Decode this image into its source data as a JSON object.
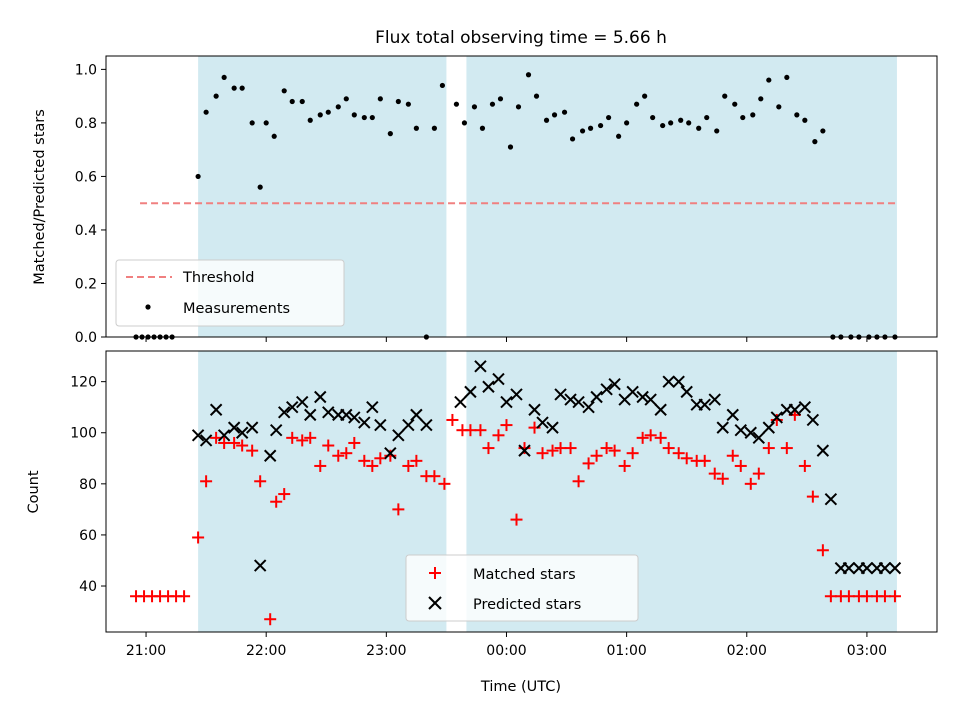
{
  "figure": {
    "title": "Flux total observing time = 5.66 h"
  },
  "chart_data": [
    {
      "type": "scatter",
      "ylabel": "Matched/Predicted stars",
      "xlabel": "",
      "xlim": [
        "20:40",
        "03:35"
      ],
      "ylim": [
        0,
        1.05
      ],
      "x_ticks": [
        "21:00",
        "22:00",
        "23:00",
        "00:00",
        "01:00",
        "02:00",
        "03:00"
      ],
      "y_ticks": [
        "0.0",
        "0.2",
        "0.4",
        "0.6",
        "0.8",
        "1.0"
      ],
      "shaded_intervals": [
        [
          "21:26",
          "23:30"
        ],
        [
          "23:40",
          "03:15"
        ]
      ],
      "shade_color": "#add8e6",
      "threshold": {
        "name": "Threshold",
        "value": 0.5,
        "x_start": "20:57",
        "x_end": "03:15",
        "color": "#f08080"
      },
      "legend": {
        "position": "lower-left",
        "entries": [
          "Threshold",
          "Measurements"
        ]
      },
      "series": [
        {
          "name": "Measurements",
          "color": "#000000",
          "x": [
            "20:55",
            "20:58",
            "21:01",
            "21:04",
            "21:07",
            "21:10",
            "21:13",
            "21:26",
            "21:30",
            "21:35",
            "21:39",
            "21:44",
            "21:48",
            "21:53",
            "21:57",
            "22:00",
            "22:04",
            "22:09",
            "22:13",
            "22:18",
            "22:22",
            "22:27",
            "22:31",
            "22:36",
            "22:40",
            "22:44",
            "22:49",
            "22:53",
            "22:57",
            "23:02",
            "23:06",
            "23:11",
            "23:15",
            "23:20",
            "23:24",
            "23:28",
            "23:35",
            "23:39",
            "23:44",
            "23:48",
            "23:53",
            "23:57",
            "00:02",
            "00:06",
            "00:11",
            "00:15",
            "00:20",
            "00:24",
            "00:29",
            "00:33",
            "00:38",
            "00:42",
            "00:47",
            "00:51",
            "00:56",
            "01:00",
            "01:05",
            "01:09",
            "01:13",
            "01:18",
            "01:22",
            "01:27",
            "01:31",
            "01:36",
            "01:40",
            "01:45",
            "01:49",
            "01:54",
            "01:58",
            "02:03",
            "02:07",
            "02:11",
            "02:16",
            "02:20",
            "02:25",
            "02:29",
            "02:34",
            "02:38",
            "02:43",
            "02:47",
            "02:52",
            "02:56",
            "03:01",
            "03:05",
            "03:09",
            "03:14"
          ],
          "y": [
            0.0,
            0.0,
            0.0,
            0.0,
            0.0,
            0.0,
            0.0,
            0.6,
            0.84,
            0.9,
            0.97,
            0.93,
            0.93,
            0.8,
            0.56,
            0.8,
            0.75,
            0.92,
            0.88,
            0.88,
            0.81,
            0.83,
            0.84,
            0.86,
            0.89,
            0.83,
            0.82,
            0.82,
            0.89,
            0.76,
            0.88,
            0.87,
            0.78,
            0.0,
            0.78,
            0.94,
            0.87,
            0.8,
            0.86,
            0.78,
            0.87,
            0.89,
            0.71,
            0.86,
            0.98,
            0.9,
            0.81,
            0.83,
            0.84,
            0.74,
            0.77,
            0.78,
            0.79,
            0.82,
            0.75,
            0.8,
            0.87,
            0.9,
            0.82,
            0.79,
            0.8,
            0.81,
            0.8,
            0.78,
            0.82,
            0.77,
            0.9,
            0.87,
            0.82,
            0.83,
            0.89,
            0.96,
            0.86,
            0.97,
            0.83,
            0.81,
            0.73,
            0.77,
            0.0,
            0.0,
            0.0,
            0.0,
            0.0,
            0.0,
            0.0,
            0.0
          ]
        }
      ]
    },
    {
      "type": "scatter",
      "ylabel": "Count",
      "xlabel": "Time (UTC)",
      "xlim": [
        "20:40",
        "03:35"
      ],
      "ylim": [
        22,
        132
      ],
      "x_ticks": [
        "21:00",
        "22:00",
        "23:00",
        "00:00",
        "01:00",
        "02:00",
        "03:00"
      ],
      "y_ticks": [
        "40",
        "60",
        "80",
        "100",
        "120"
      ],
      "shaded_intervals": [
        [
          "21:26",
          "23:30"
        ],
        [
          "23:40",
          "03:15"
        ]
      ],
      "shade_color": "#add8e6",
      "legend": {
        "position": "lower-center",
        "entries": [
          "Matched stars",
          "Predicted stars"
        ]
      },
      "series": [
        {
          "name": "Matched stars",
          "marker": "plus",
          "color": "#ff0000",
          "x": [
            "20:55",
            "20:59",
            "21:03",
            "21:07",
            "21:11",
            "21:15",
            "21:19",
            "21:26",
            "21:30",
            "21:35",
            "21:39",
            "21:44",
            "21:48",
            "21:53",
            "21:57",
            "22:02",
            "22:05",
            "22:09",
            "22:13",
            "22:18",
            "22:22",
            "22:27",
            "22:31",
            "22:36",
            "22:40",
            "22:44",
            "22:49",
            "22:53",
            "22:57",
            "23:02",
            "23:06",
            "23:11",
            "23:15",
            "23:20",
            "23:24",
            "23:29",
            "23:33",
            "23:38",
            "23:42",
            "23:47",
            "23:51",
            "23:56",
            "00:00",
            "00:05",
            "00:09",
            "00:14",
            "00:18",
            "00:23",
            "00:27",
            "00:32",
            "00:36",
            "00:41",
            "00:45",
            "00:50",
            "00:54",
            "00:59",
            "01:03",
            "01:08",
            "01:12",
            "01:17",
            "01:21",
            "01:26",
            "01:30",
            "01:35",
            "01:39",
            "01:44",
            "01:48",
            "01:53",
            "01:57",
            "02:02",
            "02:06",
            "02:11",
            "02:15",
            "02:20",
            "02:24",
            "02:29",
            "02:33",
            "02:38",
            "02:42",
            "02:47",
            "02:51",
            "02:56",
            "03:00",
            "03:05",
            "03:09",
            "03:14"
          ],
          "y": [
            36,
            36,
            36,
            36,
            36,
            36,
            36,
            59,
            81,
            98,
            96,
            96,
            95,
            93,
            81,
            27,
            73,
            76,
            98,
            97,
            98,
            87,
            95,
            91,
            92,
            96,
            89,
            87,
            90,
            91,
            70,
            87,
            89,
            83,
            83,
            80,
            105,
            101,
            101,
            101,
            94,
            99,
            103,
            66,
            94,
            102,
            92,
            93,
            94,
            94,
            81,
            88,
            91,
            94,
            93,
            87,
            92,
            98,
            99,
            98,
            94,
            92,
            90,
            89,
            89,
            84,
            82,
            91,
            87,
            80,
            84,
            94,
            105,
            94,
            107,
            87,
            75,
            54,
            36,
            36,
            36,
            36,
            36,
            36,
            36,
            36
          ]
        },
        {
          "name": "Predicted stars",
          "marker": "x",
          "color": "#000000",
          "x": [
            "21:26",
            "21:30",
            "21:35",
            "21:39",
            "21:44",
            "21:48",
            "21:53",
            "21:57",
            "22:02",
            "22:05",
            "22:09",
            "22:13",
            "22:18",
            "22:22",
            "22:27",
            "22:31",
            "22:36",
            "22:40",
            "22:44",
            "22:49",
            "22:53",
            "22:57",
            "23:02",
            "23:06",
            "23:11",
            "23:15",
            "23:20",
            "23:37",
            "23:42",
            "23:47",
            "23:51",
            "23:56",
            "00:00",
            "00:05",
            "00:09",
            "00:14",
            "00:18",
            "00:23",
            "00:27",
            "00:32",
            "00:36",
            "00:41",
            "00:45",
            "00:50",
            "00:54",
            "00:59",
            "01:03",
            "01:08",
            "01:12",
            "01:17",
            "01:21",
            "01:26",
            "01:30",
            "01:35",
            "01:39",
            "01:44",
            "01:48",
            "01:53",
            "01:57",
            "02:02",
            "02:06",
            "02:11",
            "02:15",
            "02:20",
            "02:24",
            "02:29",
            "02:33",
            "02:38",
            "02:42",
            "02:47",
            "02:51",
            "02:56",
            "03:00",
            "03:05",
            "03:09",
            "03:14"
          ],
          "y": [
            99,
            97,
            109,
            99,
            102,
            100,
            102,
            48,
            91,
            101,
            108,
            110,
            112,
            107,
            114,
            108,
            107,
            107,
            106,
            104,
            110,
            103,
            92,
            99,
            103,
            107,
            103,
            112,
            116,
            126,
            118,
            121,
            112,
            115,
            93,
            109,
            104,
            102,
            115,
            113,
            112,
            110,
            114,
            117,
            119,
            113,
            116,
            114,
            113,
            109,
            120,
            120,
            116,
            111,
            111,
            113,
            102,
            107,
            101,
            100,
            98,
            102,
            106,
            109,
            109,
            110,
            105,
            93,
            74,
            47,
            47,
            47,
            47,
            47,
            47,
            47
          ]
        }
      ]
    }
  ]
}
